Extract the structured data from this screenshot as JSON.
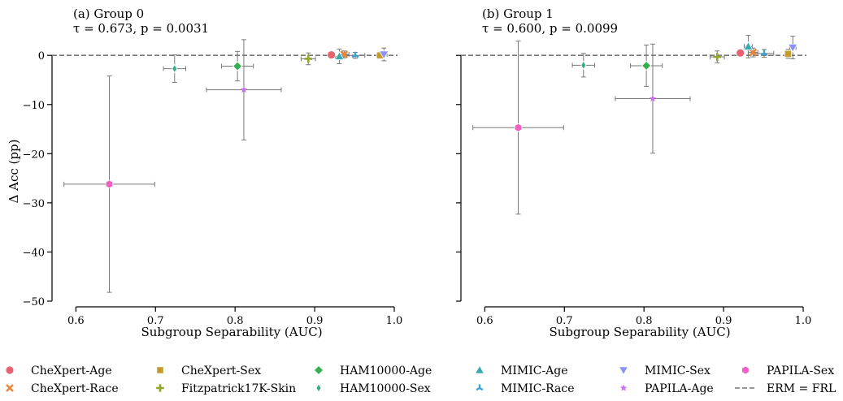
{
  "chart_data": [
    {
      "type": "scatter",
      "title": "(a) Group 0",
      "subtitle": "τ = 0.673, p = 0.0031",
      "xlabel": "Subgroup Separability (AUC)",
      "ylabel": "Δ Acc (pp)",
      "xlim": [
        0.57,
        1.0
      ],
      "ylim": [
        -50,
        4
      ],
      "xticks": [
        "0.6",
        "0.7",
        "0.8",
        "0.9",
        "1.0"
      ],
      "yticks": [
        "0",
        "−10",
        "−20",
        "−30",
        "−40",
        "−50"
      ],
      "reference_line": {
        "y": 0,
        "style": "dashed",
        "label": "ERM = FRL"
      },
      "points": [
        {
          "series": "CheXpert-Age",
          "x": 0.921,
          "y": 0.1,
          "xerr": 0.004,
          "yerr": 0.5
        },
        {
          "series": "CheXpert-Race",
          "x": 0.937,
          "y": 0.2,
          "xerr": 0.006,
          "yerr": 0.7
        },
        {
          "series": "CheXpert-Sex",
          "x": 0.982,
          "y": 0.0,
          "xerr": 0.004,
          "yerr": 0.5
        },
        {
          "series": "Fitzpatrick17K-Skin",
          "x": 0.892,
          "y": -0.7,
          "xerr": 0.009,
          "yerr": 1.2
        },
        {
          "series": "HAM10000-Age",
          "x": 0.803,
          "y": -2.2,
          "xerr": 0.02,
          "yerr": 3.0
        },
        {
          "series": "HAM10000-Sex",
          "x": 0.724,
          "y": -2.7,
          "xerr": 0.014,
          "yerr": 2.8
        },
        {
          "series": "MIMIC-Age",
          "x": 0.931,
          "y": -0.2,
          "xerr": 0.005,
          "yerr": 1.5
        },
        {
          "series": "MIMIC-Race",
          "x": 0.951,
          "y": 0.0,
          "xerr": 0.012,
          "yerr": 0.6
        },
        {
          "series": "MIMIC-Sex",
          "x": 0.987,
          "y": 0.2,
          "xerr": 0.004,
          "yerr": 1.3
        },
        {
          "series": "PAPILA-Age",
          "x": 0.811,
          "y": -7.0,
          "xerr": 0.047,
          "yerr": 10.2
        },
        {
          "series": "PAPILA-Sex",
          "x": 0.642,
          "y": -26.2,
          "xerr": 0.057,
          "yerr": 22.0
        }
      ]
    },
    {
      "type": "scatter",
      "title": "(b) Group 1",
      "subtitle": "τ = 0.600, p = 0.0099",
      "xlabel": "Subgroup Separability (AUC)",
      "ylabel": "",
      "xlim": [
        0.57,
        1.0
      ],
      "ylim": [
        -50,
        4
      ],
      "xticks": [
        "0.6",
        "0.7",
        "0.8",
        "0.9",
        "1.0"
      ],
      "yticks": [],
      "reference_line": {
        "y": 0,
        "style": "dashed",
        "label": "ERM = FRL"
      },
      "points": [
        {
          "series": "CheXpert-Age",
          "x": 0.921,
          "y": 0.5,
          "xerr": 0.004,
          "yerr": 0.6
        },
        {
          "series": "CheXpert-Race",
          "x": 0.937,
          "y": 0.6,
          "xerr": 0.006,
          "yerr": 0.9
        },
        {
          "series": "CheXpert-Sex",
          "x": 0.981,
          "y": 0.3,
          "xerr": 0.004,
          "yerr": 0.9
        },
        {
          "series": "Fitzpatrick17K-Skin",
          "x": 0.892,
          "y": -0.3,
          "xerr": 0.009,
          "yerr": 1.2
        },
        {
          "series": "HAM10000-Age",
          "x": 0.803,
          "y": -2.1,
          "xerr": 0.02,
          "yerr": 4.2
        },
        {
          "series": "HAM10000-Sex",
          "x": 0.724,
          "y": -2.0,
          "xerr": 0.014,
          "yerr": 2.4
        },
        {
          "series": "MIMIC-Age",
          "x": 0.931,
          "y": 1.8,
          "xerr": 0.005,
          "yerr": 2.3
        },
        {
          "series": "MIMIC-Race",
          "x": 0.951,
          "y": 0.4,
          "xerr": 0.012,
          "yerr": 0.8
        },
        {
          "series": "MIMIC-Sex",
          "x": 0.987,
          "y": 1.6,
          "xerr": 0.004,
          "yerr": 2.3
        },
        {
          "series": "PAPILA-Age",
          "x": 0.811,
          "y": -8.8,
          "xerr": 0.047,
          "yerr": 11.1
        },
        {
          "series": "PAPILA-Sex",
          "x": 0.642,
          "y": -14.7,
          "xerr": 0.057,
          "yerr": 17.6
        }
      ]
    }
  ],
  "legend": {
    "placement": "bottom",
    "items": [
      {
        "label": "CheXpert-Age",
        "marker": "circle",
        "color": "#e8626f"
      },
      {
        "label": "CheXpert-Race",
        "marker": "x",
        "color": "#e8863a"
      },
      {
        "label": "CheXpert-Sex",
        "marker": "square",
        "color": "#c29c30"
      },
      {
        "label": "Fitzpatrick17K-Skin",
        "marker": "plus",
        "color": "#92a52c"
      },
      {
        "label": "HAM10000-Age",
        "marker": "diamond",
        "color": "#34b050"
      },
      {
        "label": "HAM10000-Sex",
        "marker": "thin-diamond",
        "color": "#36ad8a"
      },
      {
        "label": "MIMIC-Age",
        "marker": "triangle-up",
        "color": "#36aab0"
      },
      {
        "label": "MIMIC-Race",
        "marker": "tri-x",
        "color": "#3ba3d2"
      },
      {
        "label": "MIMIC-Sex",
        "marker": "triangle-down",
        "color": "#8c92f3"
      },
      {
        "label": "PAPILA-Age",
        "marker": "star",
        "color": "#cf6ff3"
      },
      {
        "label": "PAPILA-Sex",
        "marker": "hexagon",
        "color": "#ee61c3"
      },
      {
        "label": "ERM = FRL",
        "marker": "dashed-line",
        "color": "#777777"
      }
    ]
  }
}
